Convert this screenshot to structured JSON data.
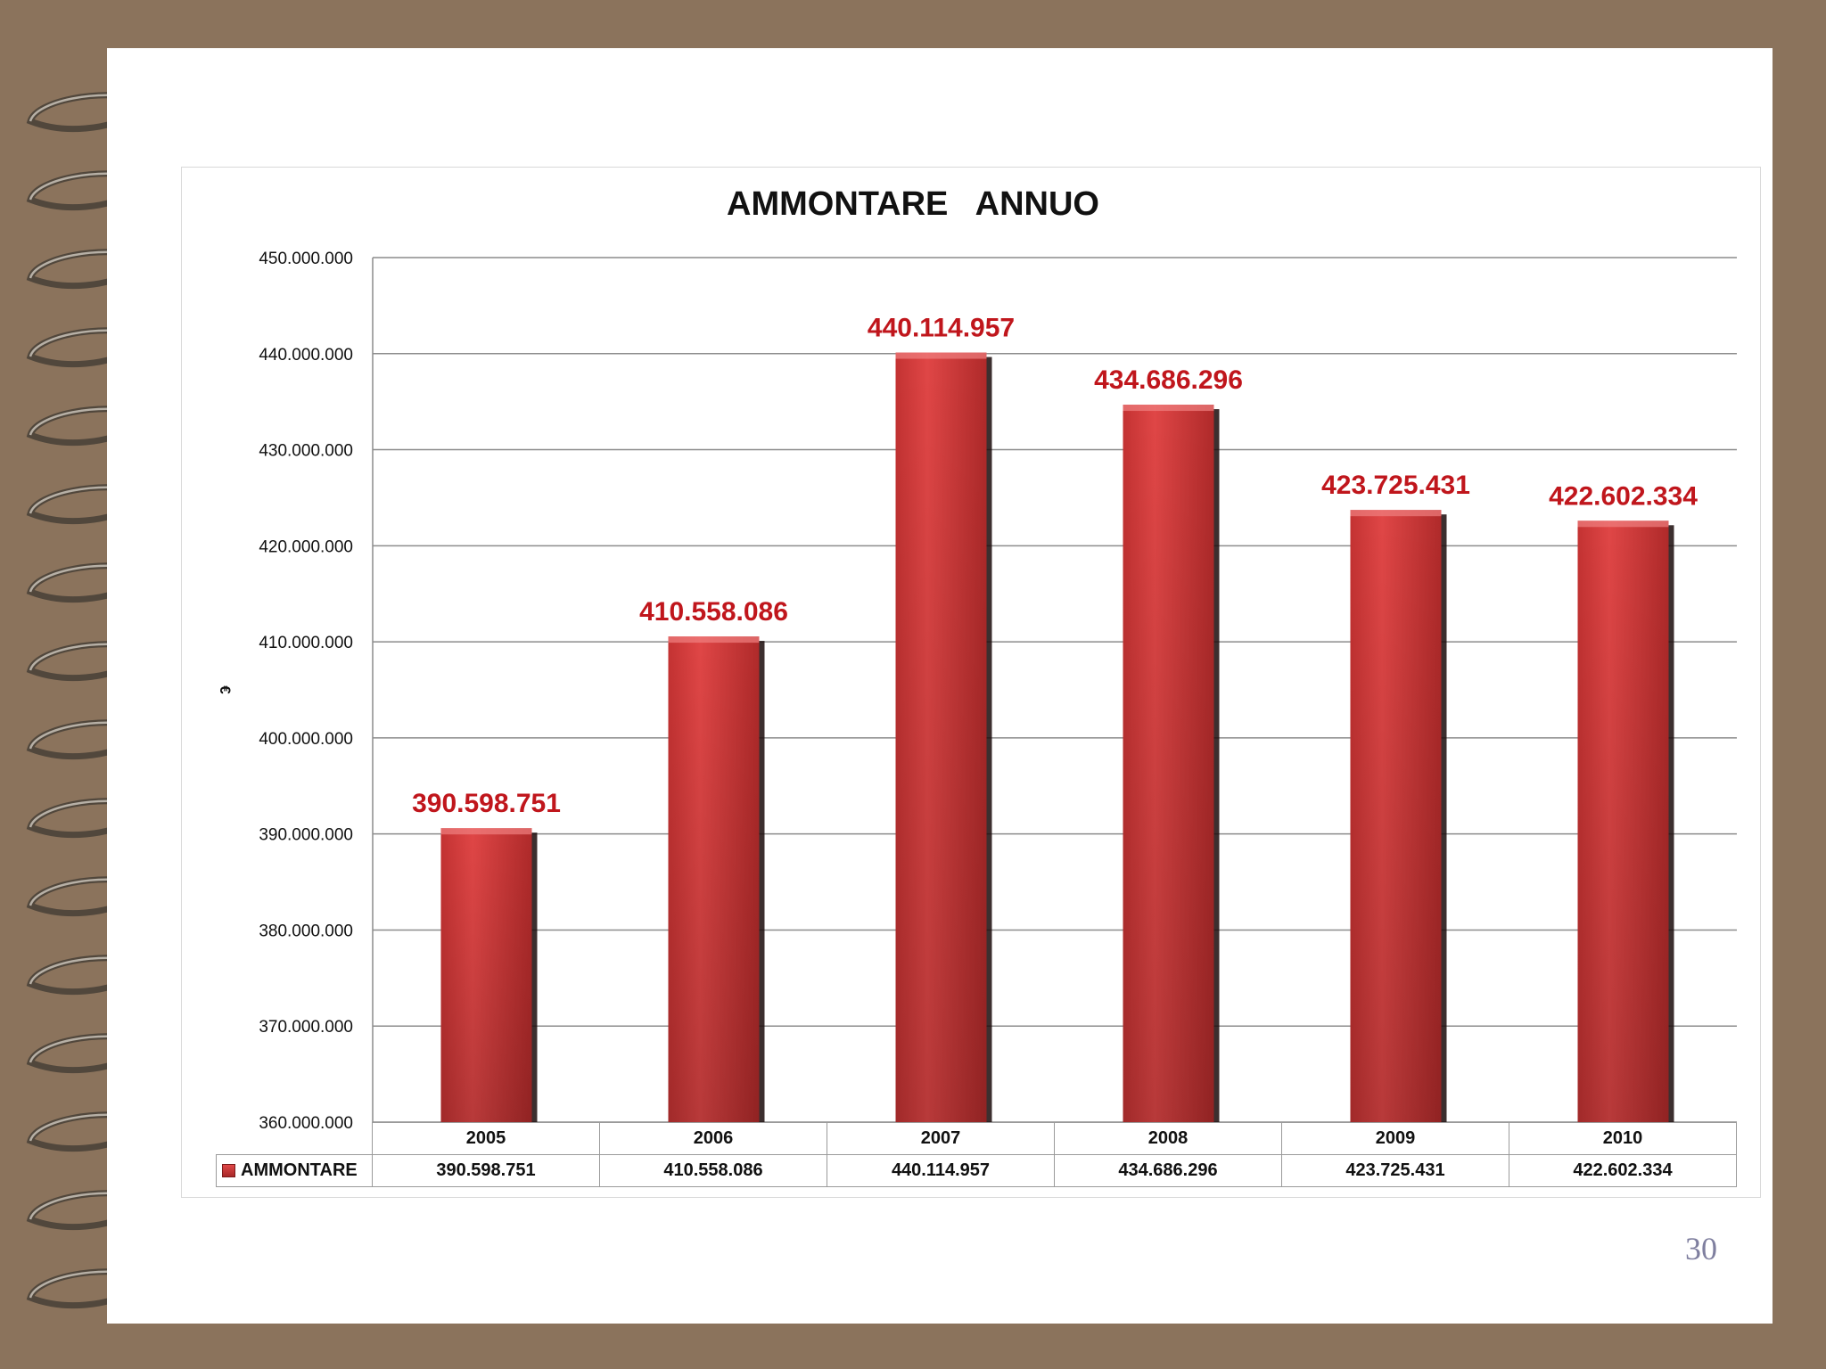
{
  "page_number": "30",
  "chart_data": {
    "type": "bar",
    "title": "AMMONTARE   ANNUO",
    "ylabel": "€",
    "xlabel": "",
    "categories": [
      "2005",
      "2006",
      "2007",
      "2008",
      "2009",
      "2010"
    ],
    "series": [
      {
        "name": "AMMONTARE",
        "values": [
          390598751,
          410558086,
          440114957,
          434686296,
          423725431,
          422602334
        ],
        "labels": [
          "390.598.751",
          "410.558.086",
          "440.114.957",
          "434.686.296",
          "423.725.431",
          "422.602.334"
        ],
        "color": "#d63c3c"
      }
    ],
    "ylim": [
      360000000,
      450000000
    ],
    "yticks": [
      360000000,
      370000000,
      380000000,
      390000000,
      400000000,
      410000000,
      420000000,
      430000000,
      440000000,
      450000000
    ],
    "ytick_labels": [
      "360.000.000",
      "370.000.000",
      "380.000.000",
      "390.000.000",
      "400.000.000",
      "410.000.000",
      "420.000.000",
      "430.000.000",
      "440.000.000",
      "450.000.000"
    ],
    "grid": true,
    "data_label_color": "#c0161c",
    "data_table": true
  }
}
